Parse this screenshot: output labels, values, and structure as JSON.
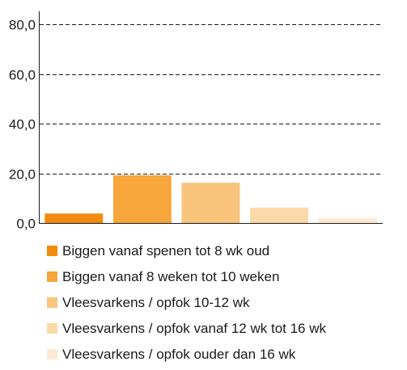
{
  "chart_data": {
    "type": "bar",
    "categories": [
      "Biggen vanaf spenen tot 8 wk oud",
      "Biggen vanaf 8 weken tot 10 weken",
      "Vleesvarkens / opfok 10-12 wk",
      "Vleesvarkens / opfok vanaf 12 wk tot 16 wk",
      "Vleesvarkens / opfok ouder dan 16 wk"
    ],
    "values": [
      3.8,
      19.2,
      16.2,
      6.2,
      2.0
    ],
    "colors": [
      "#f28c0f",
      "#f6a63a",
      "#f9c47c",
      "#fbd9a8",
      "#fde9d2"
    ],
    "ylim": [
      0,
      80
    ],
    "yticks": [
      "80,0",
      "60,0",
      "40,0",
      "20,0",
      "0,0"
    ],
    "ytick_values": [
      80,
      60,
      40,
      20,
      0
    ],
    "grid": true,
    "legend_position": "bottom"
  }
}
